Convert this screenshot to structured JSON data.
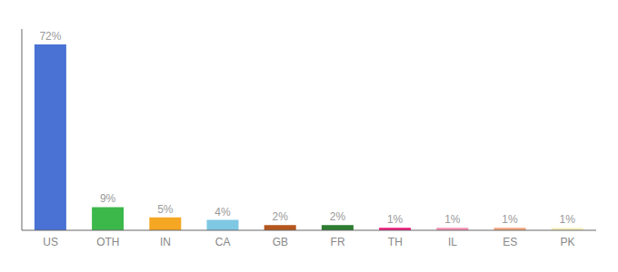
{
  "chart_data": {
    "type": "bar",
    "categories": [
      "US",
      "OTH",
      "IN",
      "CA",
      "GB",
      "FR",
      "TH",
      "IL",
      "ES",
      "PK"
    ],
    "values": [
      72,
      9,
      5,
      4,
      2,
      2,
      1,
      1,
      1,
      1
    ],
    "value_labels": [
      "72%",
      "9%",
      "5%",
      "4%",
      "2%",
      "2%",
      "1%",
      "1%",
      "1%",
      "1%"
    ],
    "colors": [
      "#4a72d4",
      "#3cb84a",
      "#f5a623",
      "#7ec8e3",
      "#b5561d",
      "#2d7d32",
      "#f0177a",
      "#f48fb1",
      "#f4a57a",
      "#f5f0c0"
    ],
    "ylim": [
      0,
      78
    ],
    "data_labels": true,
    "tick_labels": "x",
    "grid": false
  }
}
